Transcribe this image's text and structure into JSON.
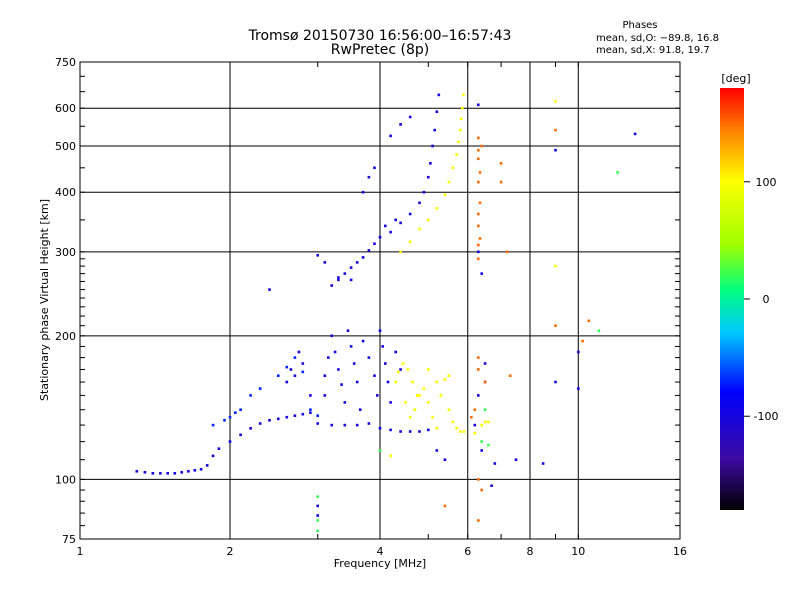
{
  "chart_data": {
    "type": "scatter",
    "title": "Tromsø 20150730 16:56:00–16:57:43",
    "subtitle": "RwPretec (8p)",
    "xlabel": "Frequency [MHz]",
    "ylabel": "Stationary phase Virtual Height [km]",
    "x_scale": "log",
    "y_scale": "log",
    "xlim": [
      1,
      16
    ],
    "ylim": [
      75,
      750
    ],
    "x_ticks": [
      1,
      2,
      4,
      6,
      8,
      10,
      16
    ],
    "x_tick_labels": [
      "1",
      "2",
      "4",
      "6",
      "8",
      "10",
      "16"
    ],
    "y_ticks": [
      75,
      100,
      200,
      300,
      400,
      500,
      600,
      750
    ],
    "y_tick_labels": [
      "75",
      "100",
      "200",
      "300",
      "400",
      "500",
      "600",
      "750"
    ],
    "grid": true,
    "info": {
      "heading": "Phases",
      "line1": "mean, sd,O: −89.8, 16.8",
      "line2": "mean, sd,X:  91.8, 19.7"
    },
    "colorbar": {
      "label": "[deg]",
      "range": [
        -180,
        180
      ],
      "ticks": [
        100,
        0,
        -100
      ],
      "tick_labels": [
        "100",
        "0",
        "-100"
      ]
    },
    "series": [
      {
        "mode": "O",
        "color_phase_deg": -100,
        "points": [
          [
            1.3,
            104
          ],
          [
            1.35,
            103.5
          ],
          [
            1.4,
            103
          ],
          [
            1.45,
            103
          ],
          [
            1.5,
            103
          ],
          [
            1.55,
            103
          ],
          [
            1.6,
            103.5
          ],
          [
            1.65,
            104
          ],
          [
            1.7,
            104.5
          ],
          [
            1.75,
            105
          ],
          [
            1.8,
            107
          ],
          [
            1.85,
            112
          ],
          [
            1.9,
            116
          ],
          [
            2.0,
            120
          ],
          [
            2.1,
            124
          ],
          [
            2.2,
            128
          ],
          [
            2.3,
            131
          ],
          [
            2.4,
            133
          ],
          [
            2.5,
            134
          ],
          [
            2.6,
            135
          ],
          [
            2.7,
            136
          ],
          [
            2.8,
            137
          ],
          [
            2.9,
            138
          ],
          [
            2.6,
            160
          ],
          [
            2.7,
            165
          ],
          [
            2.8,
            175
          ],
          [
            2.75,
            185
          ],
          [
            2.9,
            150
          ],
          [
            2.65,
            170
          ],
          [
            3.0,
            131
          ],
          [
            3.2,
            130
          ],
          [
            3.4,
            130
          ],
          [
            3.6,
            130
          ],
          [
            3.8,
            131
          ],
          [
            4.0,
            128
          ],
          [
            4.2,
            127
          ],
          [
            4.4,
            126
          ],
          [
            4.6,
            126
          ],
          [
            4.8,
            126
          ],
          [
            5.0,
            127
          ],
          [
            3.1,
            150
          ],
          [
            3.1,
            165
          ],
          [
            3.15,
            180
          ],
          [
            3.2,
            200
          ],
          [
            3.25,
            185
          ],
          [
            3.3,
            170
          ],
          [
            3.35,
            158
          ],
          [
            3.4,
            145
          ],
          [
            3.45,
            205
          ],
          [
            3.5,
            190
          ],
          [
            3.55,
            175
          ],
          [
            3.6,
            160
          ],
          [
            3.65,
            140
          ],
          [
            3.7,
            195
          ],
          [
            3.8,
            180
          ],
          [
            3.9,
            165
          ],
          [
            3.95,
            150
          ],
          [
            4.0,
            205
          ],
          [
            4.05,
            190
          ],
          [
            4.1,
            175
          ],
          [
            4.15,
            160
          ],
          [
            4.2,
            145
          ],
          [
            4.3,
            185
          ],
          [
            4.4,
            170
          ],
          [
            3.2,
            255
          ],
          [
            3.3,
            262
          ],
          [
            3.4,
            270
          ],
          [
            3.5,
            278
          ],
          [
            3.6,
            285
          ],
          [
            3.7,
            292
          ],
          [
            3.8,
            302
          ],
          [
            3.9,
            312
          ],
          [
            4.0,
            322
          ],
          [
            4.2,
            330
          ],
          [
            4.4,
            345
          ],
          [
            4.6,
            360
          ],
          [
            4.8,
            380
          ],
          [
            4.9,
            400
          ],
          [
            5.0,
            430
          ],
          [
            5.05,
            460
          ],
          [
            5.1,
            500
          ],
          [
            5.15,
            540
          ],
          [
            5.2,
            590
          ],
          [
            5.25,
            640
          ],
          [
            3.0,
            295
          ],
          [
            3.1,
            285
          ],
          [
            3.3,
            265
          ],
          [
            3.5,
            262
          ],
          [
            3.7,
            400
          ],
          [
            3.8,
            430
          ],
          [
            3.9,
            450
          ],
          [
            4.2,
            525
          ],
          [
            4.4,
            555
          ],
          [
            4.6,
            575
          ],
          [
            4.1,
            340
          ],
          [
            4.3,
            350
          ],
          [
            2.4,
            250
          ],
          [
            6.3,
            610
          ],
          [
            6.3,
            300
          ],
          [
            6.4,
            270
          ],
          [
            13.0,
            530
          ],
          [
            6.3,
            150
          ],
          [
            6.2,
            130
          ],
          [
            6.4,
            115
          ],
          [
            6.7,
            97
          ],
          [
            7.5,
            110
          ],
          [
            9.0,
            490
          ],
          [
            9.0,
            160
          ],
          [
            10.0,
            155
          ],
          [
            10.0,
            185
          ],
          [
            3.0,
            88
          ],
          [
            3.0,
            84
          ],
          [
            5.2,
            115
          ],
          [
            5.4,
            110
          ],
          [
            6.5,
            175
          ],
          [
            6.5,
            160
          ],
          [
            6.8,
            108
          ],
          [
            8.5,
            108
          ]
        ]
      },
      {
        "mode": "O_light",
        "color_phase_deg": -70,
        "points": [
          [
            2.0,
            135
          ],
          [
            2.1,
            140
          ],
          [
            2.2,
            150
          ],
          [
            2.3,
            155
          ],
          [
            2.5,
            165
          ],
          [
            2.6,
            172
          ],
          [
            2.7,
            180
          ],
          [
            2.8,
            168
          ],
          [
            2.9,
            140
          ],
          [
            3.0,
            136
          ],
          [
            1.85,
            130
          ],
          [
            1.95,
            133
          ],
          [
            2.05,
            138
          ]
        ]
      },
      {
        "mode": "X",
        "color_phase_deg": 100,
        "points": [
          [
            4.4,
            300
          ],
          [
            4.6,
            315
          ],
          [
            4.8,
            335
          ],
          [
            5.0,
            350
          ],
          [
            5.2,
            370
          ],
          [
            5.4,
            395
          ],
          [
            5.5,
            420
          ],
          [
            5.6,
            450
          ],
          [
            5.7,
            480
          ],
          [
            5.75,
            510
          ],
          [
            5.8,
            540
          ],
          [
            5.82,
            570
          ],
          [
            5.85,
            600
          ],
          [
            5.88,
            640
          ],
          [
            4.5,
            145
          ],
          [
            4.6,
            135
          ],
          [
            4.7,
            140
          ],
          [
            4.8,
            150
          ],
          [
            4.9,
            155
          ],
          [
            5.0,
            145
          ],
          [
            5.1,
            135
          ],
          [
            5.2,
            128
          ],
          [
            5.3,
            150
          ],
          [
            5.4,
            162
          ],
          [
            5.5,
            140
          ],
          [
            5.6,
            132
          ],
          [
            5.7,
            128
          ],
          [
            5.8,
            126
          ],
          [
            5.9,
            126
          ],
          [
            6.2,
            125
          ],
          [
            6.5,
            132
          ],
          [
            6.6,
            132
          ],
          [
            6.4,
            130
          ],
          [
            4.3,
            160
          ],
          [
            4.35,
            168
          ],
          [
            4.45,
            175
          ],
          [
            4.55,
            170
          ],
          [
            4.65,
            160
          ],
          [
            4.75,
            150
          ],
          [
            5.0,
            170
          ],
          [
            5.2,
            160
          ],
          [
            5.5,
            165
          ],
          [
            4.2,
            112
          ],
          [
            9.0,
            620
          ],
          [
            9.0,
            280
          ]
        ]
      },
      {
        "mode": "X_orange",
        "color_phase_deg": 150,
        "points": [
          [
            6.3,
            520
          ],
          [
            6.3,
            490
          ],
          [
            6.3,
            470
          ],
          [
            6.35,
            440
          ],
          [
            6.3,
            420
          ],
          [
            6.35,
            380
          ],
          [
            6.3,
            360
          ],
          [
            6.3,
            340
          ],
          [
            6.35,
            320
          ],
          [
            6.3,
            290
          ],
          [
            6.3,
            310
          ],
          [
            6.4,
            500
          ],
          [
            7.0,
            460
          ],
          [
            7.0,
            420
          ],
          [
            7.2,
            300
          ],
          [
            6.3,
            180
          ],
          [
            6.3,
            170
          ],
          [
            6.5,
            160
          ],
          [
            6.3,
            82
          ],
          [
            6.3,
            100
          ],
          [
            6.4,
            95
          ],
          [
            5.4,
            88
          ],
          [
            7.3,
            165
          ],
          [
            9.0,
            540
          ],
          [
            9.0,
            210
          ],
          [
            10.5,
            215
          ],
          [
            10.2,
            195
          ],
          [
            6.2,
            140
          ],
          [
            6.1,
            135
          ]
        ]
      },
      {
        "mode": "green_cyan",
        "color_phase_deg": 20,
        "points": [
          [
            3.0,
            78
          ],
          [
            3.0,
            82
          ],
          [
            3.0,
            92
          ],
          [
            4.0,
            115
          ],
          [
            6.5,
            140
          ],
          [
            12.0,
            440
          ],
          [
            11.0,
            205
          ],
          [
            6.4,
            120
          ],
          [
            6.6,
            118
          ]
        ]
      }
    ]
  }
}
